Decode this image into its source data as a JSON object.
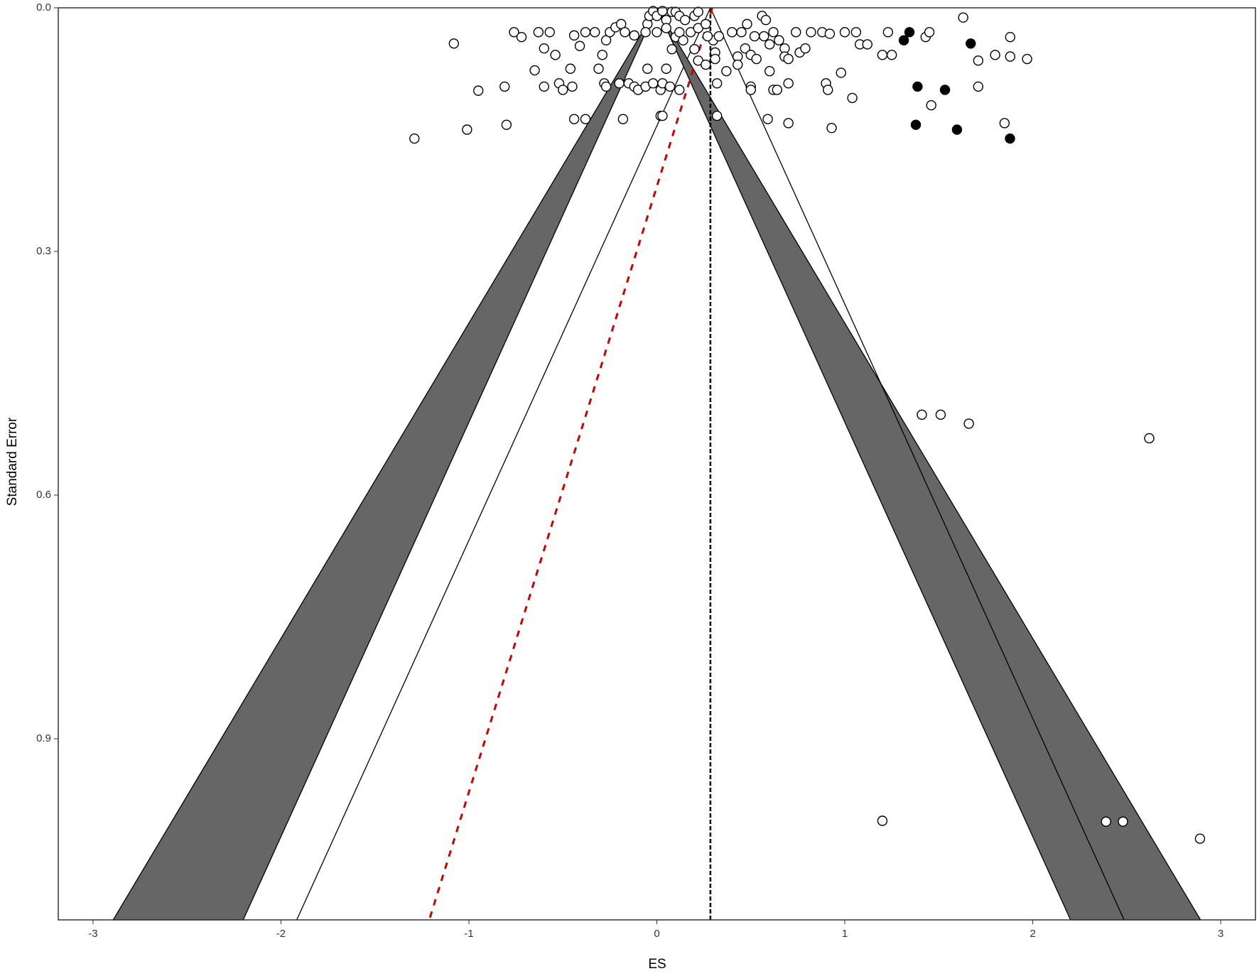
{
  "chart_data": {
    "type": "scatter",
    "x_label": "ES",
    "y_label": "Standard Error",
    "xlim": [
      -3.185,
      3.185
    ],
    "ylim": [
      0,
      1.123
    ],
    "y_reversed": true,
    "xticks": [
      -3,
      -2,
      -1,
      0,
      1,
      2,
      3
    ],
    "yticks": [
      {
        "value": 0,
        "label": "0.0"
      },
      0.3,
      0.6,
      0.9
    ],
    "funnel": {
      "center": 0.285,
      "z95": 1.96,
      "z99": 2.576,
      "contour_color": "#666666"
    },
    "egger_line": {
      "x": [
        0.295,
        -1.211
      ],
      "y": [
        0,
        1.123
      ],
      "color": "#cc0000"
    },
    "series": [
      {
        "color": "#ffffff",
        "x": [
          -1.29,
          -1.01,
          -0.8,
          -1.08,
          -0.95,
          -0.81,
          -0.76,
          -0.72,
          -0.63,
          -0.57,
          -0.6,
          -0.54,
          -0.65,
          -0.6,
          -0.52,
          -0.5,
          -0.45,
          -0.46,
          -0.44,
          -0.38,
          -0.44,
          -0.41,
          -0.38,
          -0.33,
          -0.31,
          -0.29,
          -0.27,
          -0.25,
          -0.22,
          -0.19,
          -0.17,
          -0.12,
          -0.28,
          -0.27,
          -0.2,
          -0.18,
          -0.15,
          -0.12,
          -0.1,
          -0.06,
          -0.05,
          -0.02,
          0.02,
          0.03,
          0.05,
          0.07,
          0.02,
          0.03,
          0.12,
          -0.05,
          -0.04,
          -0.02,
          0.0,
          0.03,
          0.05,
          0.08,
          0.1,
          0.12,
          0.15,
          0.2,
          0.22,
          -0.06,
          0.0,
          0.05,
          0.1,
          0.14,
          0.18,
          0.22,
          0.08,
          0.2,
          0.22,
          0.26,
          0.3,
          0.33,
          0.31,
          0.31,
          0.32,
          0.32,
          0.12,
          0.26,
          0.27,
          0.4,
          0.45,
          0.48,
          0.56,
          0.58,
          0.52,
          0.43,
          0.47,
          0.5,
          0.53,
          0.57,
          0.6,
          0.62,
          0.65,
          0.68,
          0.68,
          0.7,
          0.74,
          0.76,
          0.79,
          0.82,
          0.88,
          0.92,
          0.98,
          1.0,
          1.06,
          1.08,
          1.12,
          1.2,
          0.9,
          0.91,
          0.5,
          0.5,
          0.6,
          0.62,
          0.64,
          0.7,
          0.59,
          0.7,
          0.93,
          1.04,
          1.23,
          1.25,
          1.43,
          1.45,
          1.46,
          1.63,
          1.71,
          1.71,
          1.8,
          1.88,
          1.88,
          1.97,
          1.85,
          0.43,
          0.37,
          1.41,
          1.51,
          1.66,
          2.62,
          1.2,
          2.39,
          2.48,
          2.89
        ],
        "values": [
          0.161,
          0.15,
          0.144,
          0.044,
          0.102,
          0.097,
          0.03,
          0.036,
          0.03,
          0.03,
          0.05,
          0.058,
          0.077,
          0.097,
          0.093,
          0.101,
          0.097,
          0.075,
          0.137,
          0.137,
          0.034,
          0.047,
          0.03,
          0.03,
          0.075,
          0.058,
          0.04,
          0.03,
          0.024,
          0.02,
          0.03,
          0.034,
          0.093,
          0.097,
          0.093,
          0.137,
          0.093,
          0.097,
          0.101,
          0.097,
          0.075,
          0.093,
          0.101,
          0.093,
          0.075,
          0.097,
          0.133,
          0.133,
          0.101,
          0.02,
          0.01,
          0.004,
          0.01,
          0.004,
          0.015,
          0.005,
          0.005,
          0.01,
          0.015,
          0.01,
          0.005,
          0.03,
          0.03,
          0.025,
          0.036,
          0.04,
          0.03,
          0.025,
          0.051,
          0.051,
          0.065,
          0.07,
          0.04,
          0.035,
          0.055,
          0.063,
          0.093,
          0.133,
          0.03,
          0.02,
          0.035,
          0.03,
          0.03,
          0.02,
          0.01,
          0.015,
          0.035,
          0.06,
          0.05,
          0.058,
          0.063,
          0.035,
          0.045,
          0.03,
          0.04,
          0.05,
          0.06,
          0.063,
          0.03,
          0.055,
          0.05,
          0.03,
          0.03,
          0.032,
          0.08,
          0.03,
          0.03,
          0.045,
          0.045,
          0.058,
          0.093,
          0.101,
          0.097,
          0.101,
          0.078,
          0.101,
          0.101,
          0.093,
          0.137,
          0.142,
          0.148,
          0.111,
          0.03,
          0.058,
          0.036,
          0.03,
          0.12,
          0.012,
          0.065,
          0.097,
          0.058,
          0.036,
          0.06,
          0.063,
          0.142,
          0.07,
          0.078,
          0.501,
          0.501,
          0.512,
          0.53,
          1.001,
          1.002,
          1.002,
          1.023
        ]
      },
      {
        "color": "#000000",
        "x": [
          1.344,
          1.314,
          1.67,
          1.387,
          1.533,
          1.378,
          1.597,
          1.879
        ],
        "values": [
          0.03,
          0.04,
          0.044,
          0.097,
          0.101,
          0.144,
          0.15,
          0.161
        ]
      }
    ]
  }
}
